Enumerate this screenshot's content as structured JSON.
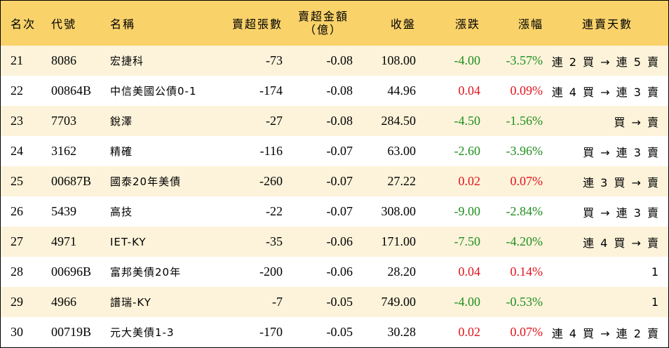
{
  "headers": {
    "rank": "名次",
    "code": "代號",
    "name": "名稱",
    "sell_lots": "賣超張數",
    "sell_amount_line1": "賣超金額",
    "sell_amount_line2": "（億）",
    "close": "收盤",
    "change": "漲跌",
    "pct": "漲幅",
    "streak": "連賣天數"
  },
  "colors": {
    "header_bg": "#f9d26a",
    "row_alt_bg": "#fdf3da",
    "up": "#e0141e",
    "down": "#1f8f1f"
  },
  "rows": [
    {
      "rank": "21",
      "code": "8086",
      "name": "宏捷科",
      "lots": "-73",
      "amount": "-0.08",
      "close": "108.00",
      "change": "-4.00",
      "pct": "-3.57%",
      "dir": "down",
      "streak": "連 2 買 → 連 5 賣"
    },
    {
      "rank": "22",
      "code": "00864B",
      "name": "中信美國公債0-1",
      "lots": "-174",
      "amount": "-0.08",
      "close": "44.96",
      "change": "0.04",
      "pct": "0.09%",
      "dir": "up",
      "streak": "連 4 買 → 連 3 賣"
    },
    {
      "rank": "23",
      "code": "7703",
      "name": "銳澤",
      "lots": "-27",
      "amount": "-0.08",
      "close": "284.50",
      "change": "-4.50",
      "pct": "-1.56%",
      "dir": "down",
      "streak": "買 → 賣"
    },
    {
      "rank": "24",
      "code": "3162",
      "name": "精確",
      "lots": "-116",
      "amount": "-0.07",
      "close": "63.00",
      "change": "-2.60",
      "pct": "-3.96%",
      "dir": "down",
      "streak": "買 → 連 3 賣"
    },
    {
      "rank": "25",
      "code": "00687B",
      "name": "國泰20年美債",
      "lots": "-260",
      "amount": "-0.07",
      "close": "27.22",
      "change": "0.02",
      "pct": "0.07%",
      "dir": "up",
      "streak": "連 3 買 → 賣"
    },
    {
      "rank": "26",
      "code": "5439",
      "name": "高技",
      "lots": "-22",
      "amount": "-0.07",
      "close": "308.00",
      "change": "-9.00",
      "pct": "-2.84%",
      "dir": "down",
      "streak": "買 → 連 3 賣"
    },
    {
      "rank": "27",
      "code": "4971",
      "name": "IET-KY",
      "lots": "-35",
      "amount": "-0.06",
      "close": "171.00",
      "change": "-7.50",
      "pct": "-4.20%",
      "dir": "down",
      "streak": "連 4 買 → 賣"
    },
    {
      "rank": "28",
      "code": "00696B",
      "name": "富邦美債20年",
      "lots": "-200",
      "amount": "-0.06",
      "close": "28.20",
      "change": "0.04",
      "pct": "0.14%",
      "dir": "up",
      "streak": "1"
    },
    {
      "rank": "29",
      "code": "4966",
      "name": "譜瑞-KY",
      "lots": "-7",
      "amount": "-0.05",
      "close": "749.00",
      "change": "-4.00",
      "pct": "-0.53%",
      "dir": "down",
      "streak": "1"
    },
    {
      "rank": "30",
      "code": "00719B",
      "name": "元大美債1-3",
      "lots": "-170",
      "amount": "-0.05",
      "close": "30.28",
      "change": "0.02",
      "pct": "0.07%",
      "dir": "up",
      "streak": "連 4 買 → 連 2 賣"
    }
  ]
}
